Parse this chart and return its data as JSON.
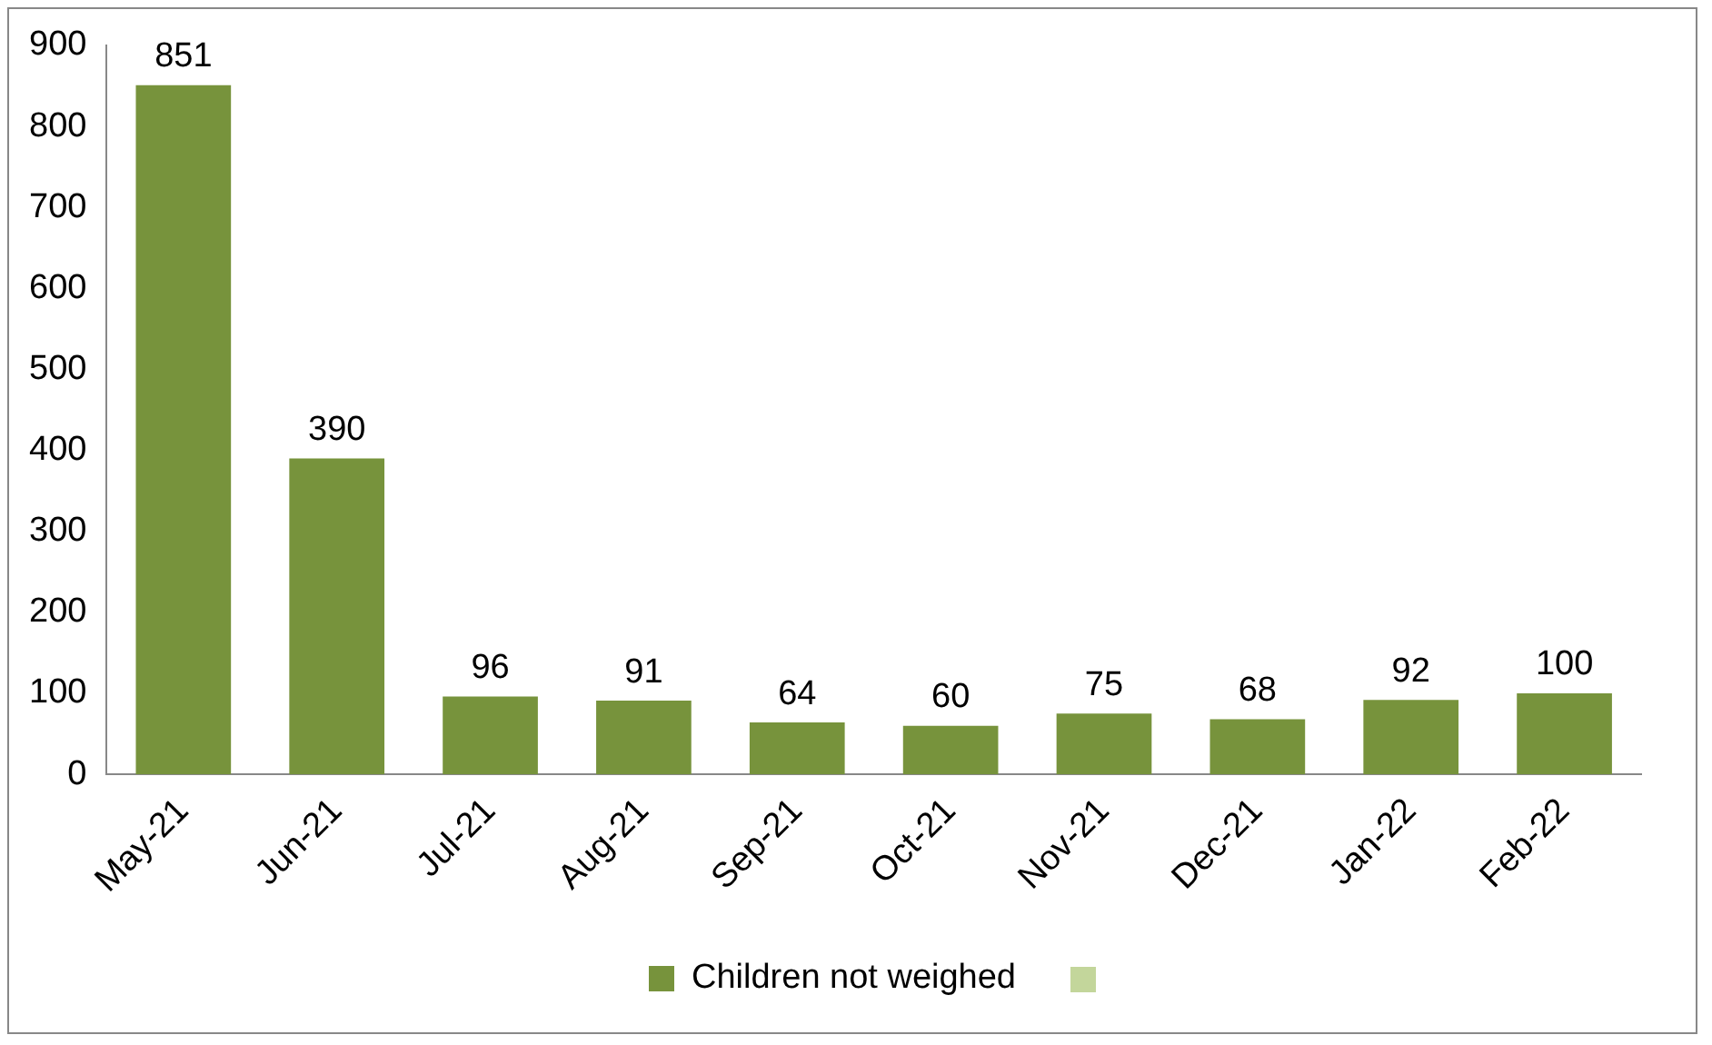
{
  "chart_data": {
    "type": "bar",
    "categories": [
      "May-21",
      "Jun-21",
      "Jul-21",
      "Aug-21",
      "Sep-21",
      "Oct-21",
      "Nov-21",
      "Dec-21",
      "Jan-22",
      "Feb-22"
    ],
    "series": [
      {
        "name": "Children not weighed",
        "color": "#77933c",
        "values": [
          851,
          390,
          96,
          91,
          64,
          60,
          75,
          68,
          92,
          100
        ]
      }
    ],
    "ylim": [
      0,
      900
    ],
    "yticks": [
      0,
      100,
      200,
      300,
      400,
      500,
      600,
      700,
      800,
      900
    ],
    "grid": false,
    "legend": "bottom",
    "data_labels": true
  }
}
